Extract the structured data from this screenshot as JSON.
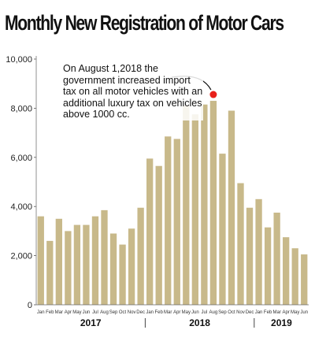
{
  "chart_data": {
    "type": "bar",
    "title": "Monthly New Registration of Motor Cars",
    "categories": [
      "Jan",
      "Feb",
      "Mar",
      "Apr",
      "May",
      "Jun",
      "Jul",
      "Aug",
      "Sep",
      "Oct",
      "Nov",
      "Dec",
      "Jan",
      "Feb",
      "Mar",
      "Apr",
      "May",
      "Jun",
      "Jul",
      "Aug",
      "Sep",
      "Oct",
      "Nov",
      "Dec",
      "Jan",
      "Feb",
      "Mar",
      "Apr",
      "May",
      "Jun"
    ],
    "values": [
      3600,
      2600,
      3500,
      3000,
      3250,
      3250,
      3600,
      3850,
      2900,
      2450,
      3100,
      3950,
      5950,
      5650,
      6850,
      6750,
      8100,
      7750,
      8150,
      8300,
      6150,
      7900,
      4950,
      3950,
      4300,
      3150,
      3750,
      2750,
      2300,
      2050
    ],
    "years": [
      "2017",
      "2018",
      "2019"
    ],
    "ylim": [
      0,
      10000
    ],
    "yticks": [
      "0",
      "2,000",
      "4,000",
      "6,000",
      "8,000",
      "10,000"
    ],
    "grid": false,
    "bar_color": "#c8b98a",
    "highlight": {
      "index": 19,
      "color": "#e8201a"
    },
    "annotation": "On August 1,2018  the government increased import tax on all motor vehicles with an additional luxury tax on vehicles above 1000 cc."
  }
}
